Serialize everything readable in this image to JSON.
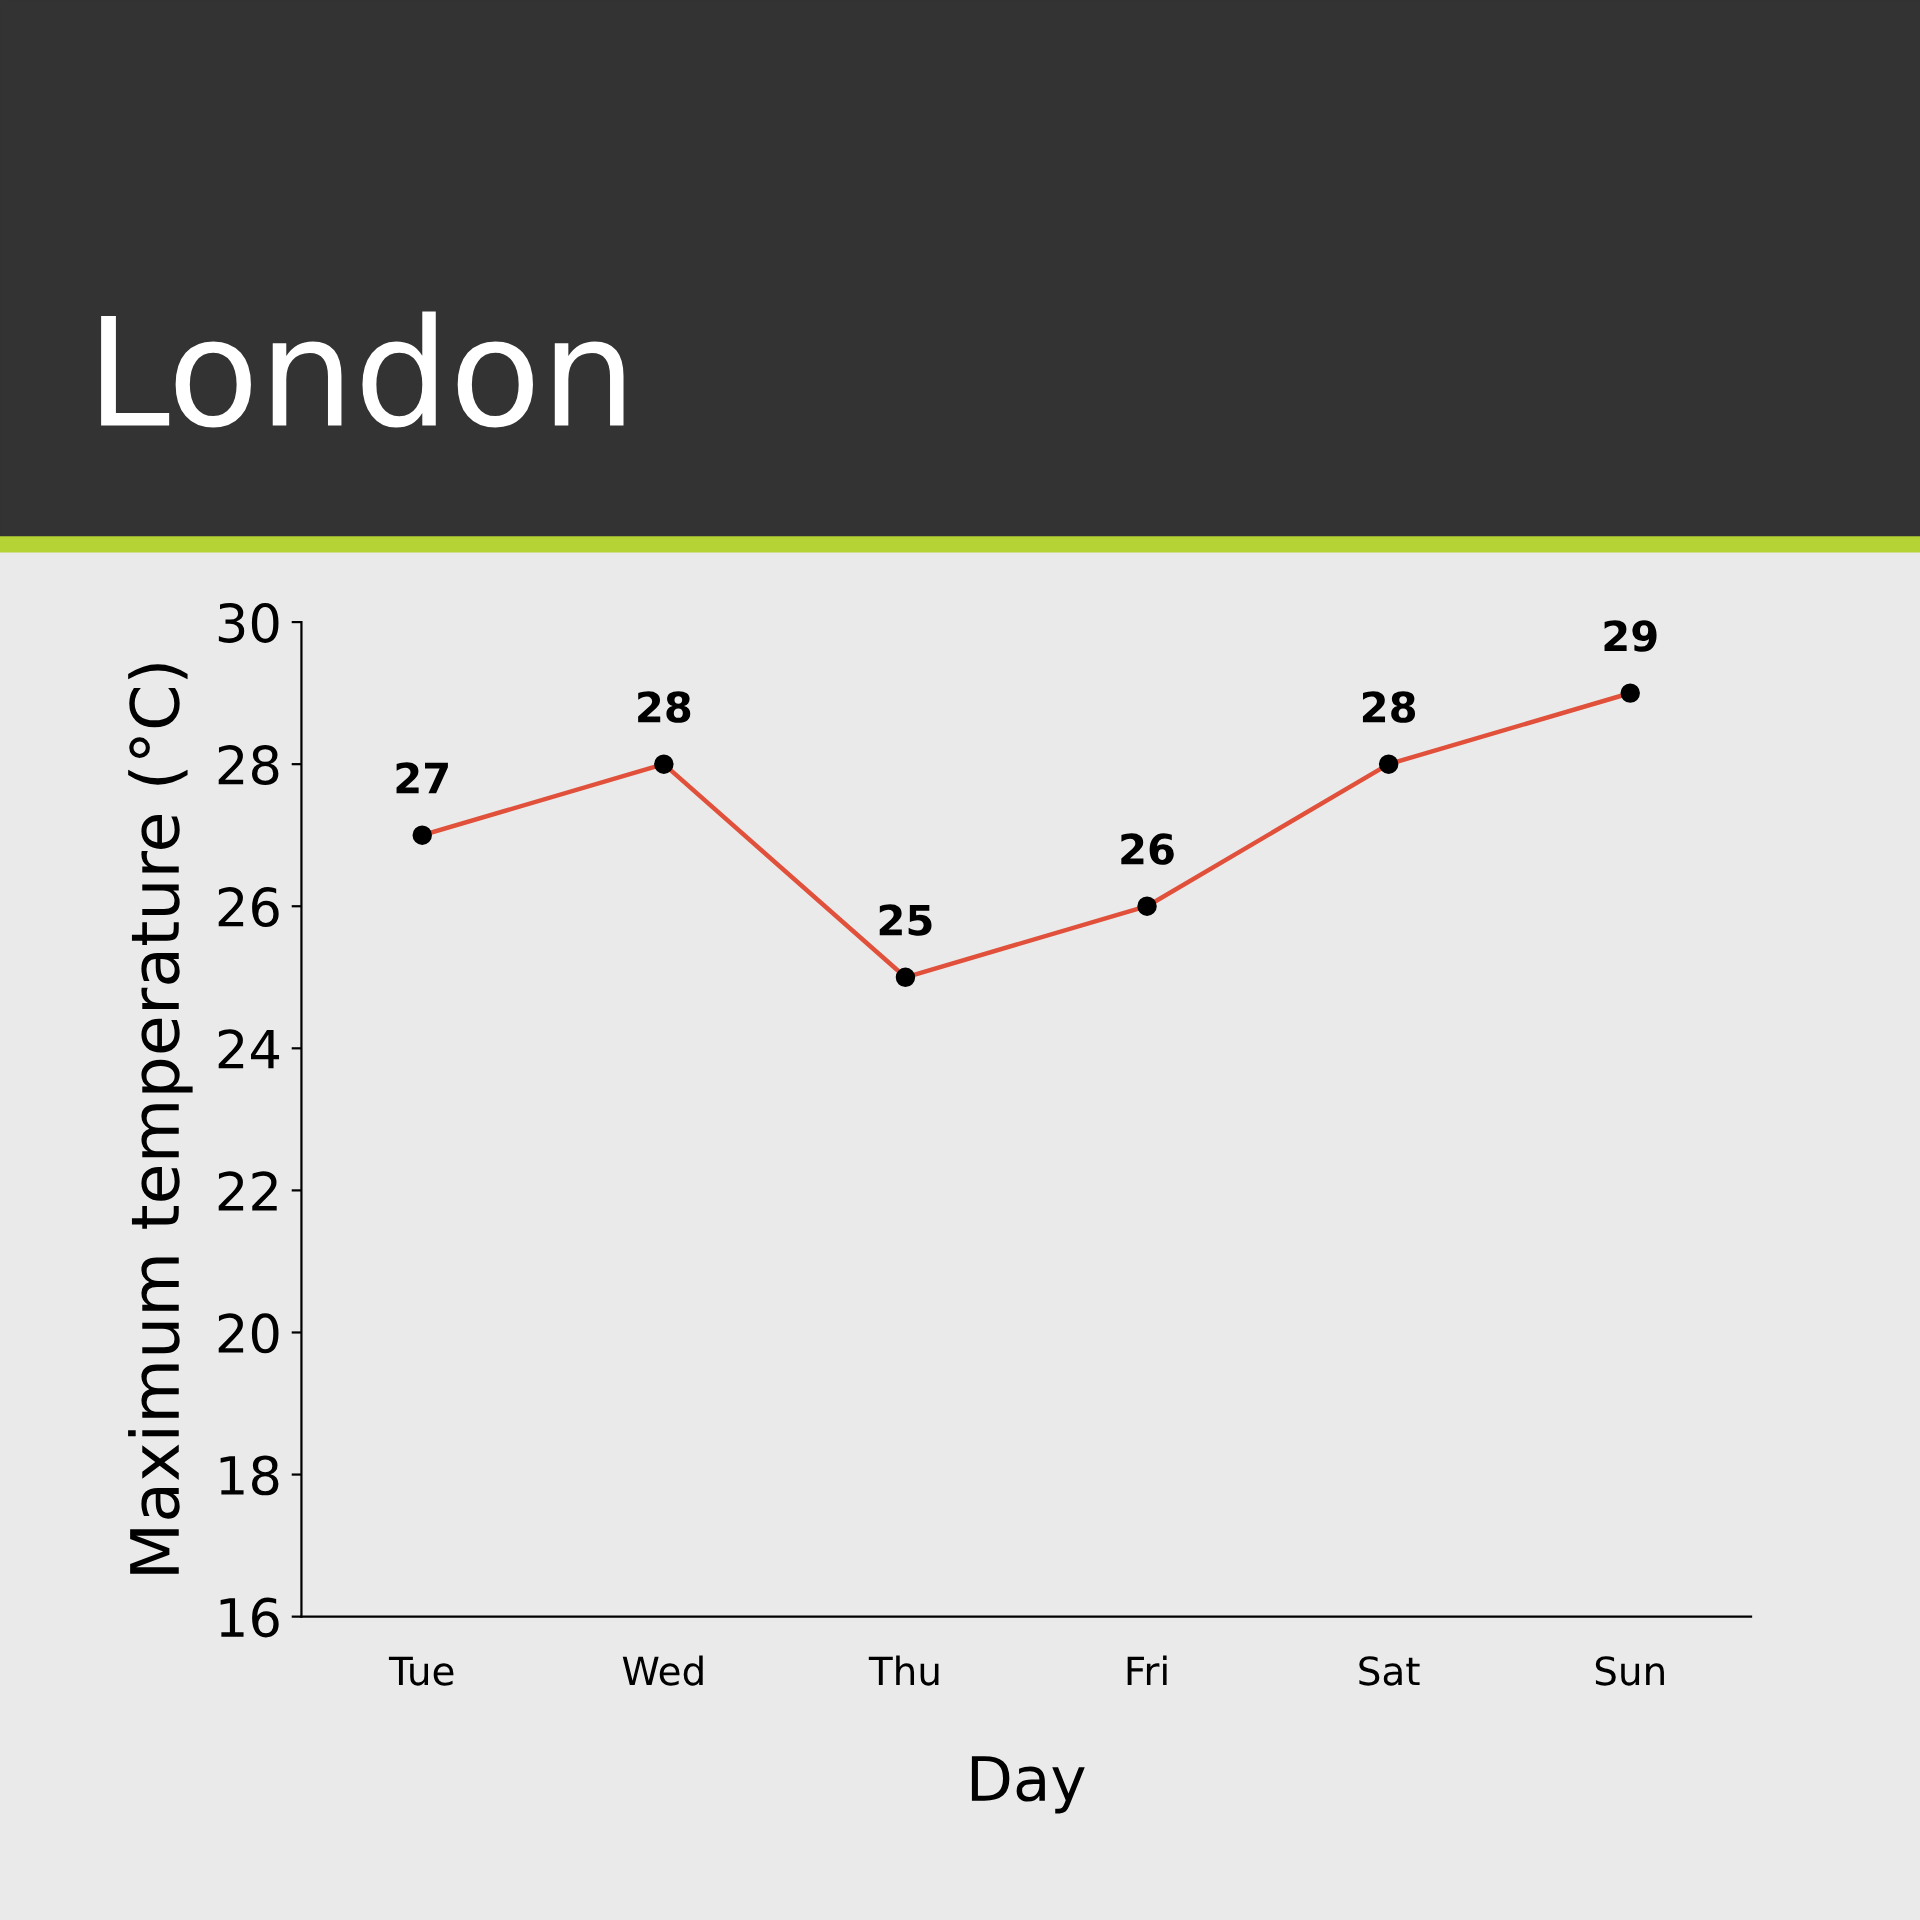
{
  "chart_data": {
    "type": "line",
    "title": "London",
    "xlabel": "Day",
    "ylabel": "Maximum temperature (°C)",
    "categories": [
      "Tue",
      "Wed",
      "Thu",
      "Fri",
      "Sat",
      "Sun"
    ],
    "series": [
      {
        "color": "#e0503a",
        "values": [
          27,
          28,
          25,
          26,
          28,
          29
        ]
      }
    ],
    "ylim": [
      16,
      30
    ],
    "yticks": [
      16,
      18,
      20,
      22,
      24,
      26,
      28,
      30
    ],
    "marker": "circle",
    "line_style": "solid",
    "data_labels": true,
    "grid": false,
    "legend": false
  }
}
